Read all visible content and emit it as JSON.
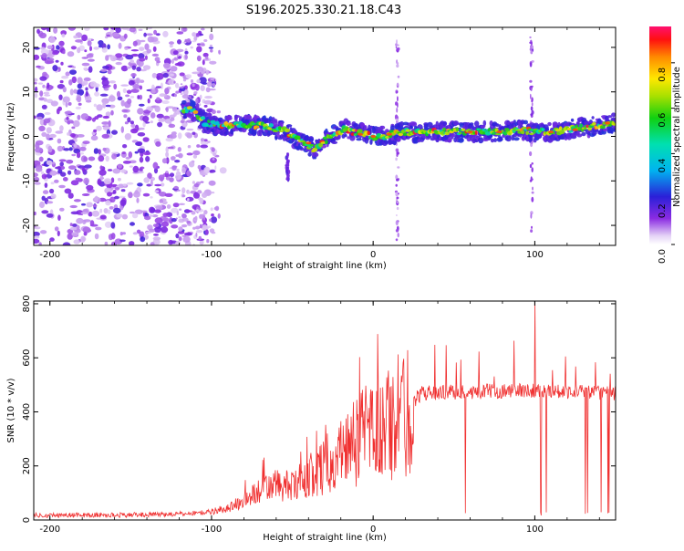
{
  "title": "S196.2025.330.21.18.C43",
  "chart_data": [
    {
      "type": "heatmap",
      "xlabel": "Height of straight line (km)",
      "ylabel": "Frequency (Hz)",
      "xlim": [
        -210,
        150
      ],
      "ylim": [
        -24.5,
        24.5
      ],
      "xticks": [
        -200,
        -100,
        0,
        100
      ],
      "yticks": [
        20,
        10,
        0,
        -10,
        -20
      ],
      "colorbar": {
        "label": "Normalized spectral amplitude",
        "range": [
          0,
          0.96
        ],
        "ticks": [
          "0.0",
          "0.2",
          "0.4",
          "0.6",
          "0.8"
        ],
        "tick_values": [
          0,
          0.2,
          0.4,
          0.6,
          0.8
        ]
      },
      "ridge": {
        "x": [
          -118,
          -112,
          -104,
          -96,
          -88,
          -80,
          -72,
          -64,
          -56,
          -48,
          -42,
          -36,
          -30,
          -24,
          -18,
          -12,
          -6,
          0,
          6,
          12,
          20,
          30,
          40,
          50,
          60,
          70,
          80,
          90,
          100,
          110,
          120,
          130,
          140,
          150
        ],
        "y": [
          6,
          6,
          3,
          2.5,
          2.5,
          2.5,
          2.5,
          2,
          1.5,
          -0.5,
          -1.5,
          -3,
          -1,
          0.5,
          1.5,
          1,
          0.5,
          0,
          0,
          0.5,
          1,
          1,
          1,
          1,
          1,
          1,
          1,
          1.5,
          1,
          1,
          1.5,
          2,
          2.5,
          3
        ]
      }
    },
    {
      "type": "line",
      "xlabel": "Height of straight line (km)",
      "ylabel": "SNR (10 * v/v)",
      "xlim": [
        -210,
        150
      ],
      "ylim": [
        0,
        810
      ],
      "xticks": [
        -200,
        -100,
        0,
        100
      ],
      "yticks": [
        0,
        200,
        400,
        600,
        800
      ],
      "envelope": {
        "x": [
          -210,
          -160,
          -120,
          -100,
          -90,
          -80,
          -70,
          -60,
          -50,
          -40,
          -30,
          -20,
          -10,
          0,
          10,
          20,
          25,
          30,
          60,
          100,
          150
        ],
        "y": [
          18,
          18,
          22,
          30,
          45,
          70,
          110,
          130,
          120,
          160,
          200,
          250,
          290,
          330,
          360,
          390,
          440,
          470,
          475,
          480,
          470
        ]
      }
    }
  ]
}
